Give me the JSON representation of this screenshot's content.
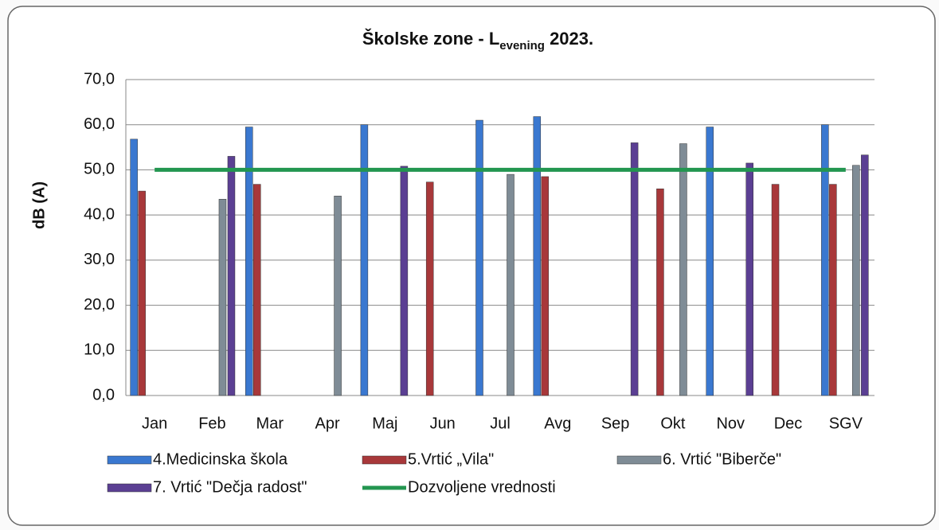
{
  "chart_data": {
    "type": "bar",
    "title": [
      "Školske zone - L",
      "evening",
      " 2023."
    ],
    "y_label": "dB (A)",
    "categories": [
      "Jan",
      "Feb",
      "Mar",
      "Apr",
      "Maj",
      "Jun",
      "Jul",
      "Avg",
      "Sep",
      "Okt",
      "Nov",
      "Dec",
      "SGV"
    ],
    "series": [
      {
        "name": "4.Medicinska škola",
        "color": "#3a78d0",
        "values": [
          56.8,
          null,
          59.5,
          null,
          60.0,
          null,
          61.0,
          61.8,
          null,
          null,
          59.5,
          null,
          60.0
        ]
      },
      {
        "name": "5.Vrtić „Vila\"",
        "color": "#a8383a",
        "values": [
          45.3,
          null,
          46.8,
          null,
          null,
          47.3,
          null,
          48.5,
          null,
          45.8,
          null,
          46.8,
          46.8
        ]
      },
      {
        "name": "6. Vrtić \"Biberče\"",
        "color": "#7f8c96",
        "values": [
          null,
          43.5,
          null,
          44.2,
          null,
          null,
          49.0,
          null,
          null,
          55.8,
          null,
          null,
          51.0
        ]
      },
      {
        "name": "7. Vrtić \"Dečja radost\"",
        "color": "#5b3f93",
        "values": [
          null,
          53.0,
          null,
          null,
          50.8,
          null,
          null,
          null,
          56.0,
          null,
          51.5,
          null,
          53.3
        ]
      },
      {
        "name": "Dozvoljene vrednosti",
        "type": "line",
        "color": "#239650",
        "values": [
          50,
          50,
          50,
          50,
          50,
          50,
          50,
          50,
          50,
          50,
          50,
          50,
          50
        ]
      }
    ],
    "ylim": [
      0,
      70
    ],
    "yticks": [
      {
        "value": 0,
        "label": "0,0"
      },
      {
        "value": 10,
        "label": "10,0"
      },
      {
        "value": 20,
        "label": "20,0"
      },
      {
        "value": 30,
        "label": "30,0"
      },
      {
        "value": 40,
        "label": "40,0"
      },
      {
        "value": 50,
        "label": "50,0"
      },
      {
        "value": 60,
        "label": "60,0"
      },
      {
        "value": 70,
        "label": "70,0"
      }
    ],
    "grid": true
  }
}
